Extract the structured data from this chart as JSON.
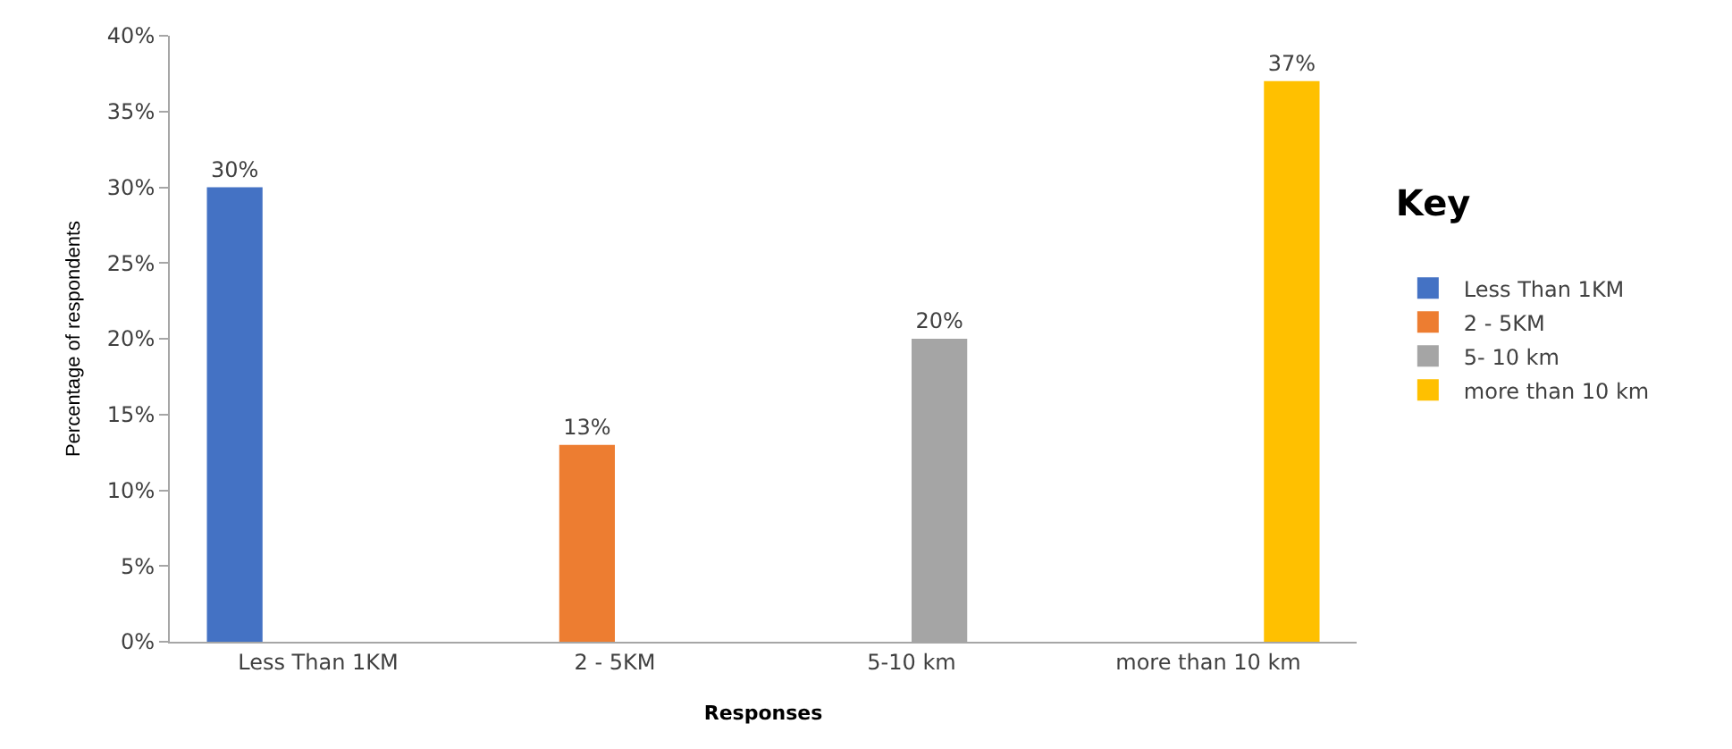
{
  "chart_data": {
    "type": "bar",
    "xlabel": "Responses",
    "ylabel": "Percentage of respondents",
    "legend_title": "Key",
    "categories": [
      "Less Than 1KM",
      "2 - 5KM",
      "5-10 km",
      "more than 10 km"
    ],
    "series": [
      {
        "name": "Less Than 1KM",
        "color": "#4472c4",
        "values": [
          30,
          null,
          null,
          null
        ],
        "value_labels": [
          "30%",
          null,
          null,
          null
        ]
      },
      {
        "name": "2 - 5KM",
        "color": "#ed7d31",
        "values": [
          null,
          13,
          null,
          null
        ],
        "value_labels": [
          null,
          "13%",
          null,
          null
        ]
      },
      {
        "name": "5- 10 km",
        "color": "#a5a5a5",
        "values": [
          null,
          null,
          20,
          null
        ],
        "value_labels": [
          null,
          null,
          "20%",
          null
        ]
      },
      {
        "name": "more than 10 km",
        "color": "#ffc000",
        "values": [
          null,
          null,
          null,
          37
        ],
        "value_labels": [
          null,
          null,
          null,
          "37%"
        ]
      }
    ],
    "ylim": [
      0,
      40
    ],
    "yticks": [
      {
        "value": 0,
        "label": "0%"
      },
      {
        "value": 5,
        "label": "5%"
      },
      {
        "value": 10,
        "label": "10%"
      },
      {
        "value": 15,
        "label": "15%"
      },
      {
        "value": 20,
        "label": "20%"
      },
      {
        "value": 25,
        "label": "25%"
      },
      {
        "value": 30,
        "label": "30%"
      },
      {
        "value": 35,
        "label": "35%"
      },
      {
        "value": 40,
        "label": "40%"
      }
    ],
    "legend": "right"
  }
}
